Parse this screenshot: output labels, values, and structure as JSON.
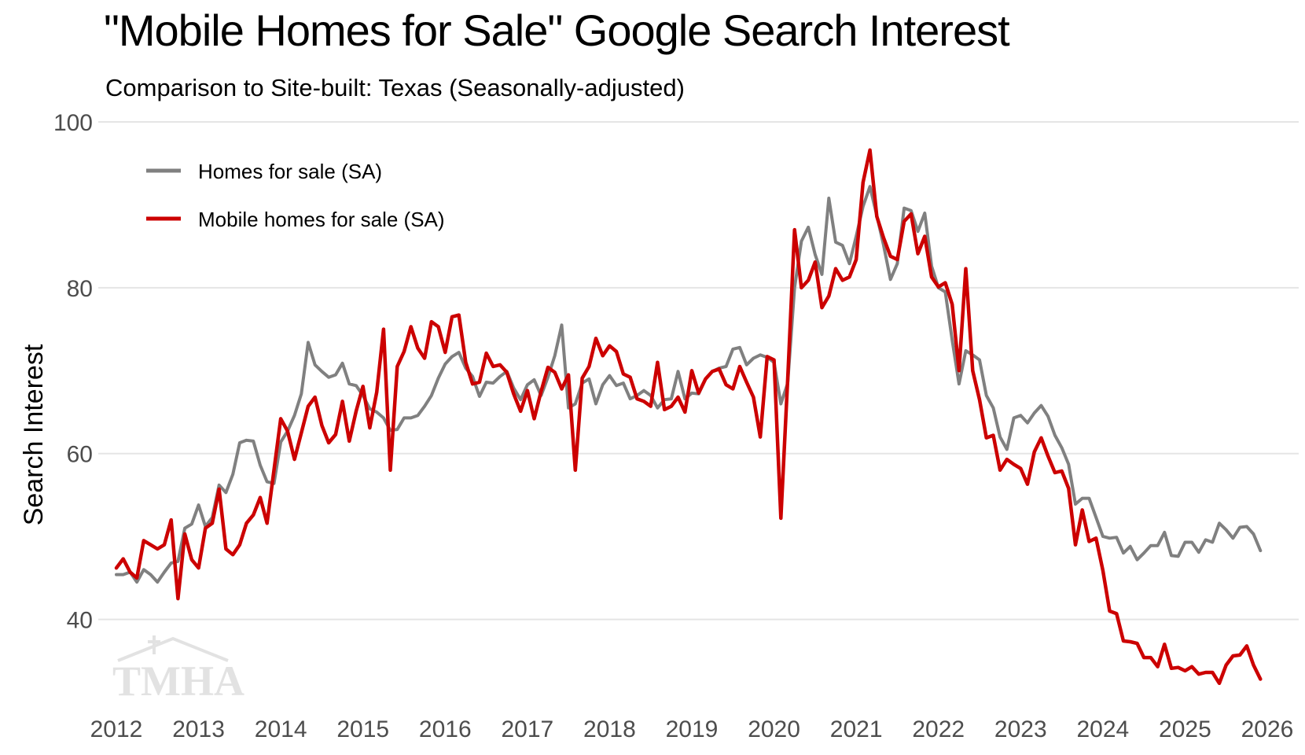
{
  "title": "\"Mobile Homes for Sale\" Google Search Interest",
  "subtitle": "Comparison to Site-built: Texas (Seasonally-adjusted)",
  "logo_text": "TMHA",
  "colors": {
    "background": "#ffffff",
    "grid": "#e5e5e5",
    "homes_series": "#808080",
    "mobile_series": "#cc0000",
    "tick_text": "#4d4d4d",
    "logo": "#e2e2e2"
  },
  "chart_data": {
    "type": "line",
    "ylabel": "Search Interest",
    "xlabel": "",
    "xlim": [
      2012,
      2026
    ],
    "ylim": [
      30,
      100
    ],
    "x_ticks": [
      "2012",
      "2013",
      "2014",
      "2015",
      "2016",
      "2017",
      "2018",
      "2019",
      "2020",
      "2021",
      "2022",
      "2023",
      "2024",
      "2025",
      "2026"
    ],
    "y_ticks": [
      "40",
      "60",
      "80",
      "100"
    ],
    "grid": "horizontal",
    "legend_position": "top-left",
    "series": [
      {
        "name": "Homes for sale (SA)",
        "color": "#808080",
        "x": [
          2012.0,
          2012.083,
          2012.167,
          2012.25,
          2012.333,
          2012.417,
          2012.5,
          2012.583,
          2012.667,
          2012.75,
          2012.833,
          2012.917,
          2013.0,
          2013.083,
          2013.167,
          2013.25,
          2013.333,
          2013.417,
          2013.5,
          2013.583,
          2013.667,
          2013.75,
          2013.833,
          2013.917,
          2014.0,
          2014.083,
          2014.167,
          2014.25,
          2014.333,
          2014.417,
          2014.5,
          2014.583,
          2014.667,
          2014.75,
          2014.833,
          2014.917,
          2015.0,
          2015.083,
          2015.167,
          2015.25,
          2015.333,
          2015.417,
          2015.5,
          2015.583,
          2015.667,
          2015.75,
          2015.833,
          2015.917,
          2016.0,
          2016.083,
          2016.167,
          2016.25,
          2016.333,
          2016.417,
          2016.5,
          2016.583,
          2016.667,
          2016.75,
          2016.833,
          2016.917,
          2017.0,
          2017.083,
          2017.167,
          2017.25,
          2017.333,
          2017.417,
          2017.5,
          2017.583,
          2017.667,
          2017.75,
          2017.833,
          2017.917,
          2018.0,
          2018.083,
          2018.167,
          2018.25,
          2018.333,
          2018.417,
          2018.5,
          2018.583,
          2018.667,
          2018.75,
          2018.833,
          2018.917,
          2019.0,
          2019.083,
          2019.167,
          2019.25,
          2019.333,
          2019.417,
          2019.5,
          2019.583,
          2019.667,
          2019.75,
          2019.833,
          2019.917,
          2020.0,
          2020.083,
          2020.167,
          2020.25,
          2020.333,
          2020.417,
          2020.5,
          2020.583,
          2020.667,
          2020.75,
          2020.833,
          2020.917,
          2021.0,
          2021.083,
          2021.167,
          2021.25,
          2021.333,
          2021.417,
          2021.5,
          2021.583,
          2021.667,
          2021.75,
          2021.833,
          2021.917,
          2022.0,
          2022.083,
          2022.167,
          2022.25,
          2022.333,
          2022.417,
          2022.5,
          2022.583,
          2022.667,
          2022.75,
          2022.833,
          2022.917,
          2023.0,
          2023.083,
          2023.167,
          2023.25,
          2023.333,
          2023.417,
          2023.5,
          2023.583,
          2023.667,
          2023.75,
          2023.833,
          2023.917,
          2024.0,
          2024.083,
          2024.167,
          2024.25,
          2024.333,
          2024.417,
          2024.5,
          2024.583,
          2024.667,
          2024.75,
          2024.833,
          2024.917,
          2025.0,
          2025.083,
          2025.167,
          2025.25,
          2025.333,
          2025.417,
          2025.5,
          2025.583,
          2025.667,
          2025.75,
          2025.833,
          2025.917
        ],
        "values": [
          45.4,
          45.4,
          45.7,
          44.5,
          46.0,
          45.4,
          44.5,
          45.7,
          46.8,
          47.0,
          51.0,
          51.5,
          53.8,
          51.2,
          52.3,
          56.2,
          55.3,
          57.5,
          61.3,
          61.6,
          61.5,
          58.6,
          56.6,
          56.4,
          61.4,
          62.7,
          64.6,
          67.2,
          73.4,
          70.7,
          69.9,
          69.2,
          69.5,
          70.9,
          68.4,
          68.2,
          67.0,
          65.4,
          65.0,
          64.3,
          62.8,
          62.9,
          64.3,
          64.3,
          64.6,
          65.7,
          67.0,
          69.1,
          70.8,
          71.7,
          72.2,
          70.3,
          69.3,
          66.9,
          68.6,
          68.5,
          69.3,
          69.9,
          67.9,
          66.5,
          68.3,
          68.9,
          67.0,
          69.2,
          71.8,
          75.5,
          65.5,
          66.0,
          68.5,
          69.0,
          66.0,
          68.3,
          69.4,
          68.2,
          68.5,
          66.6,
          67.0,
          67.6,
          67.0,
          65.5,
          66.5,
          66.6,
          69.9,
          66.6,
          67.3,
          67.2,
          69.0,
          69.9,
          70.3,
          70.5,
          72.6,
          72.8,
          70.7,
          71.5,
          71.9,
          71.6,
          71.0,
          66.0,
          68.5,
          80.0,
          85.6,
          87.3,
          84.0,
          81.6,
          90.8,
          85.5,
          85.1,
          82.9,
          86.2,
          89.8,
          92.2,
          88.7,
          85.1,
          81.0,
          82.9,
          89.6,
          89.3,
          86.8,
          89.0,
          82.6,
          80.0,
          79.5,
          73.7,
          68.4,
          72.4,
          71.9,
          71.3,
          67.0,
          65.5,
          62.0,
          60.5,
          64.3,
          64.6,
          63.7,
          64.9,
          65.8,
          64.5,
          62.2,
          60.7,
          58.7,
          53.9,
          54.6,
          54.6,
          52.3,
          50.0,
          49.8,
          49.9,
          48.0,
          48.8,
          47.2,
          48.0,
          48.9,
          48.9,
          50.5,
          47.7,
          47.6,
          49.3,
          49.3,
          48.1,
          49.6,
          49.3,
          51.6,
          50.8,
          49.8,
          51.1,
          51.2,
          50.3,
          48.3
        ]
      },
      {
        "name": "Mobile homes for sale (SA)",
        "color": "#cc0000",
        "x": [
          2012.0,
          2012.083,
          2012.167,
          2012.25,
          2012.333,
          2012.417,
          2012.5,
          2012.583,
          2012.667,
          2012.75,
          2012.833,
          2012.917,
          2013.0,
          2013.083,
          2013.167,
          2013.25,
          2013.333,
          2013.417,
          2013.5,
          2013.583,
          2013.667,
          2013.75,
          2013.833,
          2013.917,
          2014.0,
          2014.083,
          2014.167,
          2014.25,
          2014.333,
          2014.417,
          2014.5,
          2014.583,
          2014.667,
          2014.75,
          2014.833,
          2014.917,
          2015.0,
          2015.083,
          2015.167,
          2015.25,
          2015.333,
          2015.417,
          2015.5,
          2015.583,
          2015.667,
          2015.75,
          2015.833,
          2015.917,
          2016.0,
          2016.083,
          2016.167,
          2016.25,
          2016.333,
          2016.417,
          2016.5,
          2016.583,
          2016.667,
          2016.75,
          2016.833,
          2016.917,
          2017.0,
          2017.083,
          2017.167,
          2017.25,
          2017.333,
          2017.417,
          2017.5,
          2017.583,
          2017.667,
          2017.75,
          2017.833,
          2017.917,
          2018.0,
          2018.083,
          2018.167,
          2018.25,
          2018.333,
          2018.417,
          2018.5,
          2018.583,
          2018.667,
          2018.75,
          2018.833,
          2018.917,
          2019.0,
          2019.083,
          2019.167,
          2019.25,
          2019.333,
          2019.417,
          2019.5,
          2019.583,
          2019.667,
          2019.75,
          2019.833,
          2019.917,
          2020.0,
          2020.083,
          2020.167,
          2020.25,
          2020.333,
          2020.417,
          2020.5,
          2020.583,
          2020.667,
          2020.75,
          2020.833,
          2020.917,
          2021.0,
          2021.083,
          2021.167,
          2021.25,
          2021.333,
          2021.417,
          2021.5,
          2021.583,
          2021.667,
          2021.75,
          2021.833,
          2021.917,
          2022.0,
          2022.083,
          2022.167,
          2022.25,
          2022.333,
          2022.417,
          2022.5,
          2022.583,
          2022.667,
          2022.75,
          2022.833,
          2022.917,
          2023.0,
          2023.083,
          2023.167,
          2023.25,
          2023.333,
          2023.417,
          2023.5,
          2023.583,
          2023.667,
          2023.75,
          2023.833,
          2023.917,
          2024.0,
          2024.083,
          2024.167,
          2024.25,
          2024.333,
          2024.417,
          2024.5,
          2024.583,
          2024.667,
          2024.75,
          2024.833,
          2024.917,
          2025.0,
          2025.083,
          2025.167,
          2025.25,
          2025.333,
          2025.417,
          2025.5,
          2025.583,
          2025.667,
          2025.75,
          2025.833,
          2025.917
        ],
        "values": [
          46.2,
          47.3,
          45.7,
          45.0,
          49.5,
          49.0,
          48.5,
          49.0,
          52.0,
          42.5,
          50.3,
          47.2,
          46.2,
          51.0,
          51.6,
          55.7,
          48.5,
          47.8,
          49.0,
          51.6,
          52.6,
          54.7,
          51.6,
          58.0,
          64.2,
          62.7,
          59.3,
          62.5,
          65.7,
          66.8,
          63.4,
          61.3,
          62.3,
          66.3,
          61.5,
          65.1,
          68.1,
          63.1,
          67.4,
          75.0,
          58.0,
          70.5,
          72.3,
          75.3,
          72.7,
          71.5,
          75.9,
          75.3,
          72.2,
          76.5,
          76.7,
          71.0,
          68.4,
          68.6,
          72.1,
          70.5,
          70.7,
          69.8,
          67.2,
          65.1,
          67.6,
          64.2,
          67.5,
          70.4,
          69.8,
          67.8,
          69.5,
          58.0,
          69.1,
          70.5,
          73.9,
          71.8,
          73.0,
          72.3,
          69.6,
          69.2,
          66.6,
          66.3,
          65.7,
          71.0,
          65.3,
          65.7,
          66.8,
          65.0,
          70.0,
          67.3,
          69.0,
          69.9,
          70.2,
          68.3,
          67.8,
          70.5,
          68.6,
          66.8,
          62.0,
          71.7,
          71.3,
          52.2,
          69.0,
          87.0,
          80.0,
          80.9,
          83.1,
          77.6,
          79.0,
          82.3,
          80.9,
          81.3,
          83.4,
          92.7,
          96.6,
          88.6,
          86.0,
          83.8,
          83.4,
          88.0,
          88.9,
          84.1,
          86.2,
          81.3,
          80.1,
          80.6,
          78.0,
          70.0,
          82.3,
          70.0,
          66.5,
          61.9,
          62.2,
          58.0,
          59.3,
          58.7,
          58.2,
          56.3,
          60.2,
          61.9,
          59.7,
          57.7,
          57.9,
          55.8,
          49.0,
          53.2,
          49.4,
          49.8,
          45.9,
          41.0,
          40.7,
          37.4,
          37.3,
          37.1,
          35.4,
          35.4,
          34.3,
          37.0,
          34.1,
          34.2,
          33.8,
          34.3,
          33.4,
          33.6,
          33.6,
          32.3,
          34.5,
          35.6,
          35.7,
          36.8,
          34.5,
          32.8
        ]
      }
    ]
  }
}
